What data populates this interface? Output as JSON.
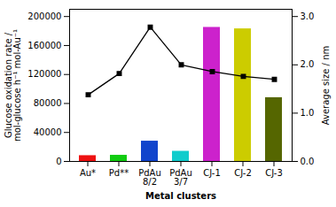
{
  "chart_data": {
    "type": "bar",
    "xlabel": "Metal clusters",
    "ylabel": "Glucose oxidation rate /\nmol-glucose h⁻¹ mol-Au⁻¹",
    "y2label": "Average size / nm",
    "categories": [
      "Au*",
      "Pd**",
      "PdAu\n8/2",
      "PdAu\n3/7",
      "CJ-1",
      "CJ-2",
      "CJ-3"
    ],
    "series": [
      {
        "type": "bar",
        "colors": [
          "#ee1111",
          "#11cc11",
          "#1144cc",
          "#11cccc",
          "#cc22cc",
          "#cccc00",
          "#556600"
        ],
        "values": [
          8000,
          8500,
          28000,
          14000,
          185000,
          183000,
          88000
        ]
      },
      {
        "type": "line",
        "axis": "y2",
        "color": "#000000",
        "marker": "square",
        "values": [
          1.38,
          1.82,
          2.78,
          2.0,
          1.86,
          1.76,
          1.7
        ]
      }
    ],
    "ylim": [
      0,
      210000
    ],
    "yticks": [
      0,
      40000,
      80000,
      120000,
      160000,
      200000
    ],
    "y2lim": [
      0,
      3.15
    ],
    "y2ticks": [
      0,
      1,
      2,
      3
    ],
    "grid": false
  }
}
